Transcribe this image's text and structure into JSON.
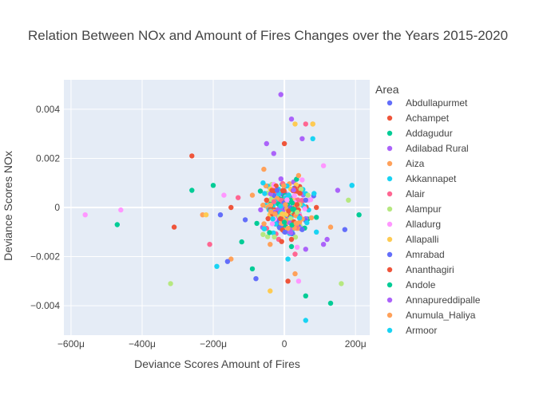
{
  "chart_data": {
    "type": "scatter",
    "title": "Relation Between NOx and Amount of Fires Changes over the Years 2015-2020",
    "xlabel": "Deviance Scores Amount of Fires",
    "ylabel": "Deviance Scores NOx",
    "xlim": [
      -0.00062,
      0.00024
    ],
    "ylim": [
      -0.0052,
      0.0052
    ],
    "x_ticks": [
      {
        "value": -0.0006,
        "label": "−600μ"
      },
      {
        "value": -0.0004,
        "label": "−400μ"
      },
      {
        "value": -0.0002,
        "label": "−200μ"
      },
      {
        "value": 0,
        "label": "0"
      },
      {
        "value": 0.0002,
        "label": "200μ"
      }
    ],
    "y_ticks": [
      {
        "value": -0.004,
        "label": "−0.004"
      },
      {
        "value": -0.002,
        "label": "−0.002"
      },
      {
        "value": 0,
        "label": "0"
      },
      {
        "value": 0.002,
        "label": "0.002"
      },
      {
        "value": 0.004,
        "label": "0.004"
      }
    ],
    "grid": true,
    "legend_title": "Area",
    "legend_position": "right",
    "series": [
      {
        "name": "Abdullapurmet",
        "color": "#636efa",
        "points": [
          [
            -2e-05,
            0.0007
          ],
          [
            5e-05,
            -0.0009
          ],
          [
            -0.00011,
            -0.0005
          ]
        ]
      },
      {
        "name": "Achampet",
        "color": "#EF553B",
        "points": [
          [
            -0.00026,
            0.0021
          ],
          [
            -0.00031,
            -0.0008
          ],
          [
            1e-05,
            -0.003
          ],
          [
            -5e-05,
            0.0003
          ]
        ]
      },
      {
        "name": "Addagudur",
        "color": "#00cc96",
        "points": [
          [
            -0.00047,
            -0.0007
          ],
          [
            -0.00026,
            0.0007
          ],
          [
            -0.0002,
            0.0009
          ],
          [
            6e-05,
            -0.0036
          ],
          [
            0.00013,
            -0.0039
          ],
          [
            0.00021,
            -0.0003
          ]
        ]
      },
      {
        "name": "Adilabad Rural",
        "color": "#ab63fa",
        "points": [
          [
            -1e-05,
            0.0046
          ],
          [
            2e-05,
            0.0036
          ],
          [
            -5e-05,
            0.0026
          ],
          [
            0.00011,
            -0.0015
          ],
          [
            0.00015,
            0.0007
          ]
        ]
      },
      {
        "name": "Aiza",
        "color": "#FFA15A",
        "points": [
          [
            -0.00023,
            -0.0003
          ],
          [
            8e-05,
            0.0034
          ],
          [
            -0.00015,
            -0.0021
          ],
          [
            3e-05,
            -0.0027
          ]
        ]
      },
      {
        "name": "Akkannapet",
        "color": "#19d3f3",
        "points": [
          [
            8e-05,
            0.0028
          ],
          [
            6e-05,
            -0.0046
          ],
          [
            0.00019,
            0.0009
          ],
          [
            -0.00019,
            -0.0024
          ]
        ]
      },
      {
        "name": "Alair",
        "color": "#FF6692",
        "points": [
          [
            6e-05,
            0.0034
          ],
          [
            -0.00021,
            -0.0015
          ],
          [
            -0.00013,
            0.0004
          ],
          [
            3e-05,
            -0.0019
          ]
        ]
      },
      {
        "name": "Alampur",
        "color": "#B6E880",
        "points": [
          [
            -0.00032,
            -0.0031
          ],
          [
            0.00016,
            -0.0031
          ],
          [
            0.00018,
            0.0003
          ],
          [
            -6e-05,
            -0.0011
          ]
        ]
      },
      {
        "name": "Alladurg",
        "color": "#FF97FF",
        "points": [
          [
            -0.00056,
            -0.0003
          ],
          [
            -0.00046,
            -0.0001
          ],
          [
            -0.00017,
            0.0005
          ],
          [
            0.00011,
            0.0017
          ],
          [
            4e-05,
            -0.003
          ]
        ]
      },
      {
        "name": "Allapalli",
        "color": "#FECB52",
        "points": [
          [
            3e-05,
            0.0034
          ],
          [
            8e-05,
            0.0034
          ],
          [
            -4e-05,
            -0.0034
          ],
          [
            -0.00022,
            -0.0003
          ]
        ]
      },
      {
        "name": "Amrabad",
        "color": "#636efa",
        "points": [
          [
            -8e-05,
            -0.0029
          ],
          [
            -0.00016,
            -0.0022
          ],
          [
            0.00017,
            -0.0009
          ],
          [
            -0.00018,
            -0.0003
          ],
          [
            6e-05,
            0.0003
          ]
        ]
      },
      {
        "name": "Ananthagiri",
        "color": "#EF553B",
        "points": [
          [
            0.0,
            0.0026
          ],
          [
            -0.00015,
            0.0
          ],
          [
            9e-05,
            0.0
          ],
          [
            2e-05,
            -0.0013
          ]
        ]
      },
      {
        "name": "Andole",
        "color": "#00cc96",
        "points": [
          [
            9e-05,
            -0.0004
          ],
          [
            -0.00012,
            -0.0014
          ],
          [
            0.0,
            -0.0006
          ],
          [
            -9e-05,
            -0.0025
          ]
        ]
      },
      {
        "name": "Annapureddipalle",
        "color": "#ab63fa",
        "points": [
          [
            5e-05,
            0.0028
          ],
          [
            -3e-05,
            0.0022
          ],
          [
            6e-05,
            -0.0017
          ],
          [
            0.00012,
            -0.0013
          ]
        ]
      },
      {
        "name": "Anumula_Haliya",
        "color": "#FFA15A",
        "points": [
          [
            -4e-05,
            -0.0015
          ],
          [
            4e-05,
            0.0013
          ],
          [
            0.00013,
            -0.0008
          ],
          [
            -9e-05,
            0.0005
          ]
        ]
      },
      {
        "name": "Armoor",
        "color": "#19d3f3",
        "points": [
          [
            0.00019,
            0.0009
          ],
          [
            -6e-05,
            0.001
          ],
          [
            1e-05,
            -0.0021
          ],
          [
            9e-05,
            -0.001
          ]
        ]
      }
    ],
    "cluster_seed": 7,
    "cluster_count": 300
  }
}
